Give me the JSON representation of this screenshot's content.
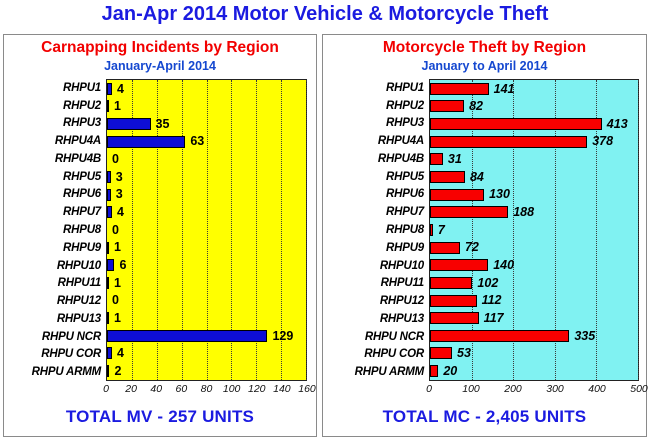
{
  "page": {
    "title": "Jan-Apr 2014 Motor Vehicle & Motorcycle Theft"
  },
  "colors": {
    "title_blue": "#1b1be0",
    "header_red": "#f20000",
    "subtitle_blue": "#1548d0",
    "left_plot_bg": "#ffff00",
    "left_bar": "#0e0ed6",
    "right_plot_bg": "#80f2f2",
    "right_bar": "#f80000",
    "panel_border": "#8a8a8a"
  },
  "chart_data": [
    {
      "type": "bar",
      "orientation": "horizontal",
      "title": "Carnapping Incidents by Region",
      "subtitle": "January-April 2014",
      "categories": [
        "RHPU1",
        "RHPU2",
        "RHPU3",
        "RHPU4A",
        "RHPU4B",
        "RHPU5",
        "RHPU6",
        "RHPU7",
        "RHPU8",
        "RHPU9",
        "RHPU10",
        "RHPU11",
        "RHPU12",
        "RHPU13",
        "RHPU NCR",
        "RHPU COR",
        "RHPU ARMM"
      ],
      "values": [
        4,
        1,
        35,
        63,
        0,
        3,
        3,
        4,
        0,
        1,
        6,
        1,
        0,
        1,
        129,
        4,
        2
      ],
      "xlim": [
        0,
        160
      ],
      "xticks": [
        0,
        20,
        40,
        60,
        80,
        100,
        120,
        140,
        160
      ],
      "grid": "dotted-vertical",
      "legend": "none",
      "plot_bg": "#ffff00",
      "bar_color": "#0e0ed6",
      "value_label_style": "bold",
      "total_label": "TOTAL MV - 257 UNITS"
    },
    {
      "type": "bar",
      "orientation": "horizontal",
      "title": "Motorcycle Theft by Region",
      "subtitle": "January to April 2014",
      "categories": [
        "RHPU1",
        "RHPU2",
        "RHPU3",
        "RHPU4A",
        "RHPU4B",
        "RHPU5",
        "RHPU6",
        "RHPU7",
        "RHPU8",
        "RHPU9",
        "RHPU10",
        "RHPU11",
        "RHPU12",
        "RHPU13",
        "RHPU NCR",
        "RHPU COR",
        "RHPU ARMM"
      ],
      "values": [
        141,
        82,
        413,
        378,
        31,
        84,
        130,
        188,
        7,
        72,
        140,
        102,
        112,
        117,
        335,
        53,
        20
      ],
      "xlim": [
        0,
        500
      ],
      "xticks": [
        0,
        100,
        200,
        300,
        400,
        500
      ],
      "grid": "dotted-vertical",
      "legend": "none",
      "plot_bg": "#80f2f2",
      "bar_color": "#f80000",
      "value_label_style": "bold-italic",
      "total_label": "TOTAL MC - 2,405 UNITS"
    }
  ]
}
